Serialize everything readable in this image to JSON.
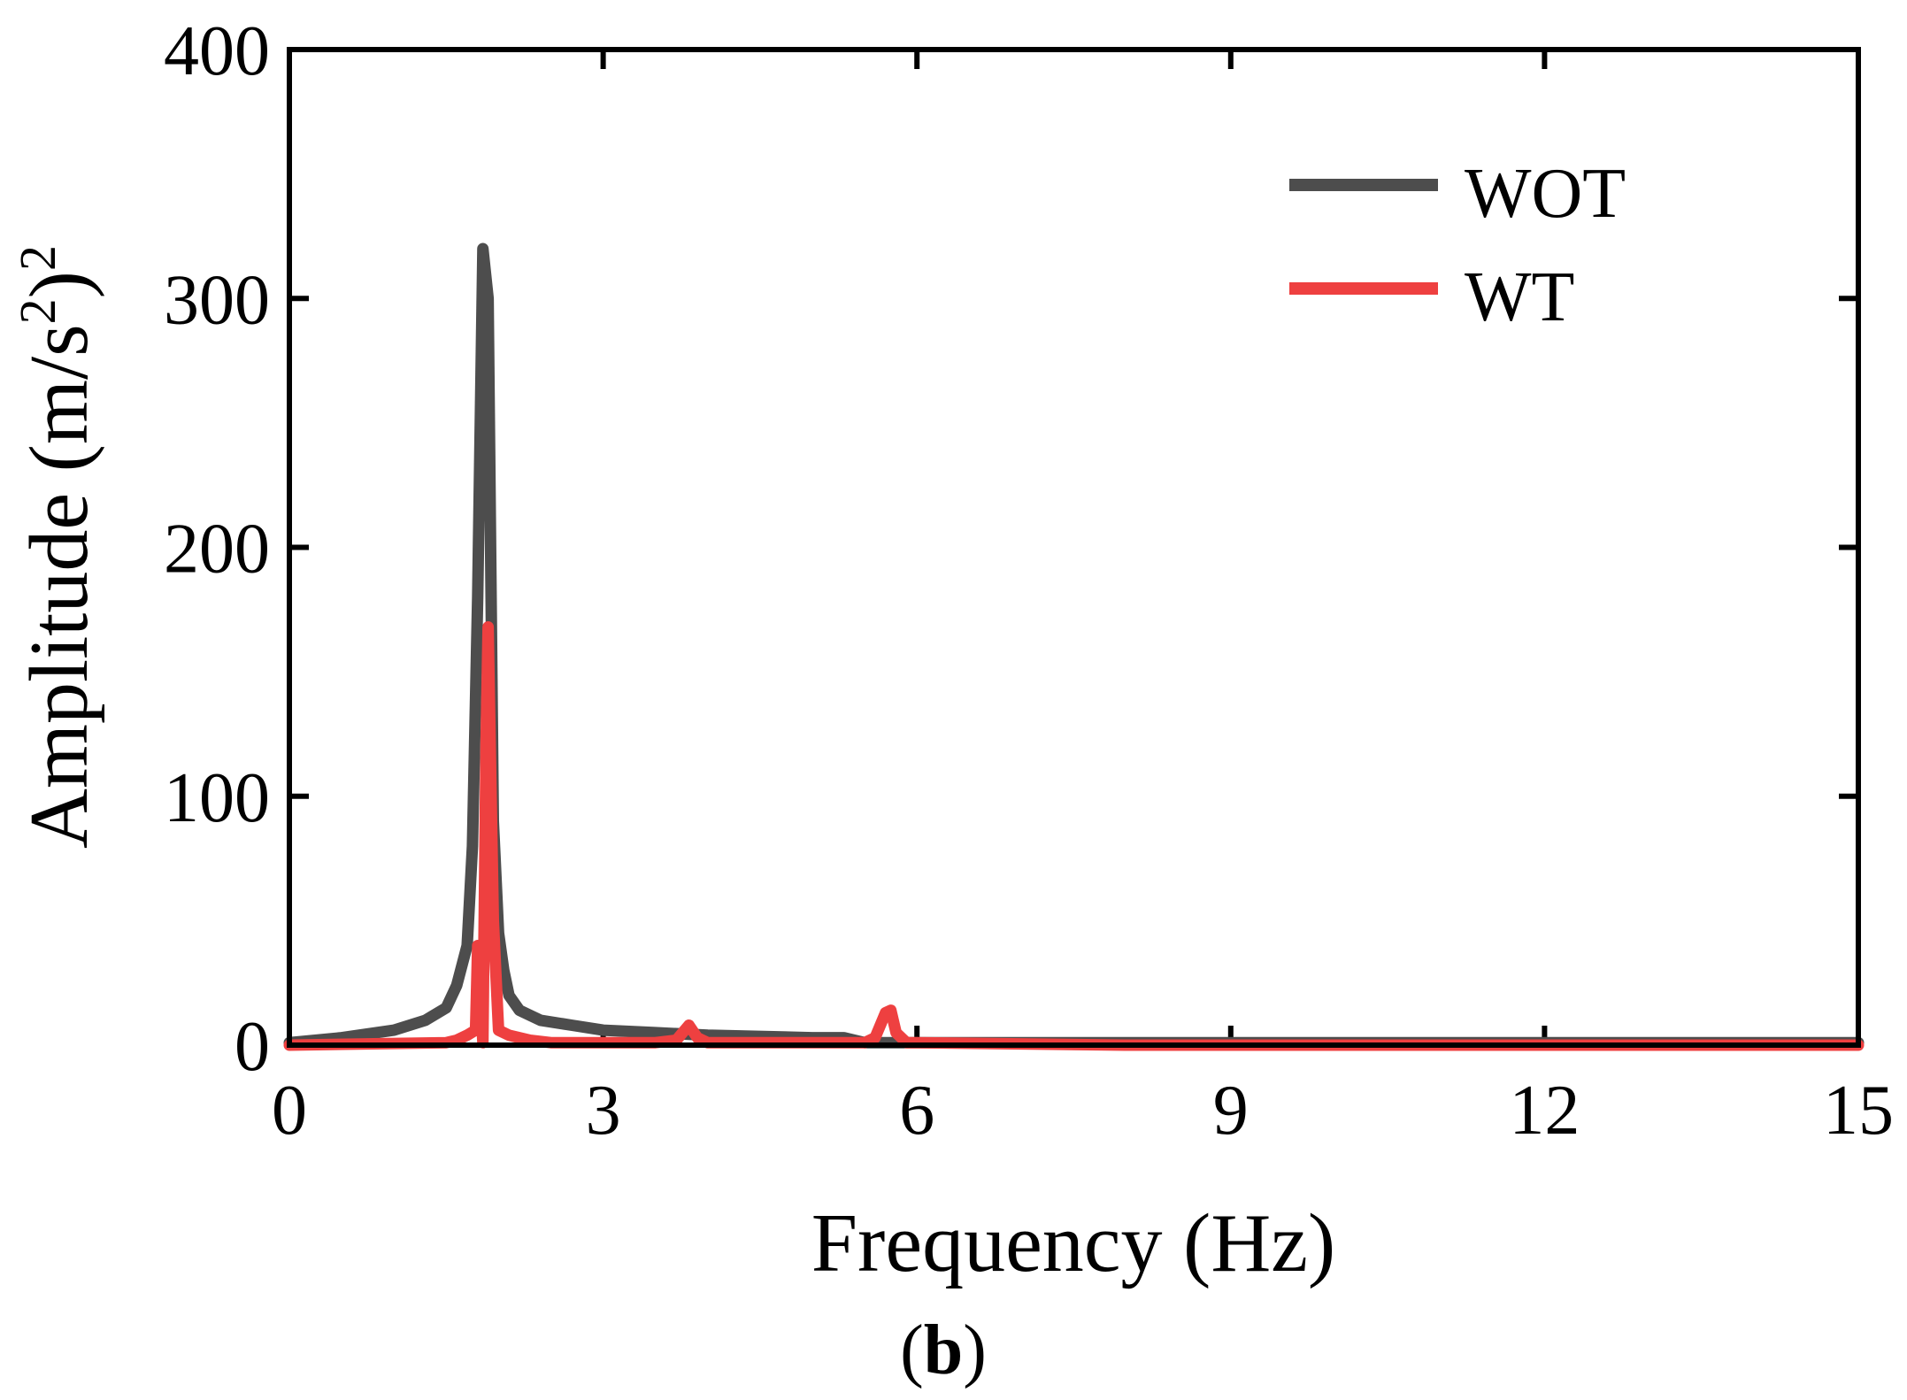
{
  "chart_data": {
    "type": "line",
    "title": "",
    "xlabel": "Frequency (Hz)",
    "ylabel_main": "Amplitude (m/s",
    "ylabel_sup_inner": "2",
    "ylabel_close": ")",
    "ylabel_sup_outer": "2",
    "panel_label": {
      "open": "(",
      "letter": "b",
      "close": ")"
    },
    "xlim": [
      0,
      15
    ],
    "ylim": [
      0,
      400
    ],
    "xticks": [
      0,
      3,
      6,
      9,
      12,
      15
    ],
    "xtick_labels": [
      "0",
      "3",
      "6",
      "9",
      "12",
      "15"
    ],
    "yticks": [
      0,
      100,
      200,
      300,
      400
    ],
    "ytick_labels": [
      "0",
      "100",
      "200",
      "300",
      "400"
    ],
    "grid": false,
    "legend_position": "top-right",
    "series": [
      {
        "name": "WOT",
        "color": "#4d4d4d",
        "x": [
          0,
          0.5,
          1.0,
          1.3,
          1.5,
          1.6,
          1.7,
          1.75,
          1.8,
          1.85,
          1.9,
          1.95,
          2.0,
          2.05,
          2.1,
          2.2,
          2.4,
          2.7,
          3.0,
          3.5,
          4.0,
          5.0,
          5.3,
          5.5,
          6.0,
          7.0,
          8.0,
          10.0,
          12.0,
          15.0
        ],
        "y": [
          1,
          3,
          6,
          10,
          15,
          24,
          40,
          80,
          180,
          320,
          300,
          90,
          45,
          30,
          20,
          14,
          10,
          8,
          6,
          5,
          4,
          3,
          3,
          1,
          1,
          1,
          1,
          1,
          1,
          1
        ]
      },
      {
        "name": "WT",
        "color": "#ee4040",
        "x": [
          0,
          1.5,
          1.6,
          1.7,
          1.78,
          1.8,
          1.85,
          1.88,
          1.9,
          1.95,
          2.0,
          2.1,
          2.3,
          2.5,
          3.0,
          3.5,
          3.7,
          3.82,
          3.9,
          4.0,
          5.0,
          5.5,
          5.6,
          5.7,
          5.75,
          5.8,
          5.9,
          6.0,
          8.0,
          10.0,
          12.0,
          15.0
        ],
        "y": [
          0,
          1,
          2,
          4,
          6,
          40,
          1,
          120,
          168,
          50,
          6,
          4,
          2,
          1,
          1,
          1,
          2,
          8,
          3,
          1,
          1,
          1,
          3,
          13,
          14,
          5,
          1,
          1,
          0,
          0,
          0,
          0
        ]
      }
    ]
  }
}
